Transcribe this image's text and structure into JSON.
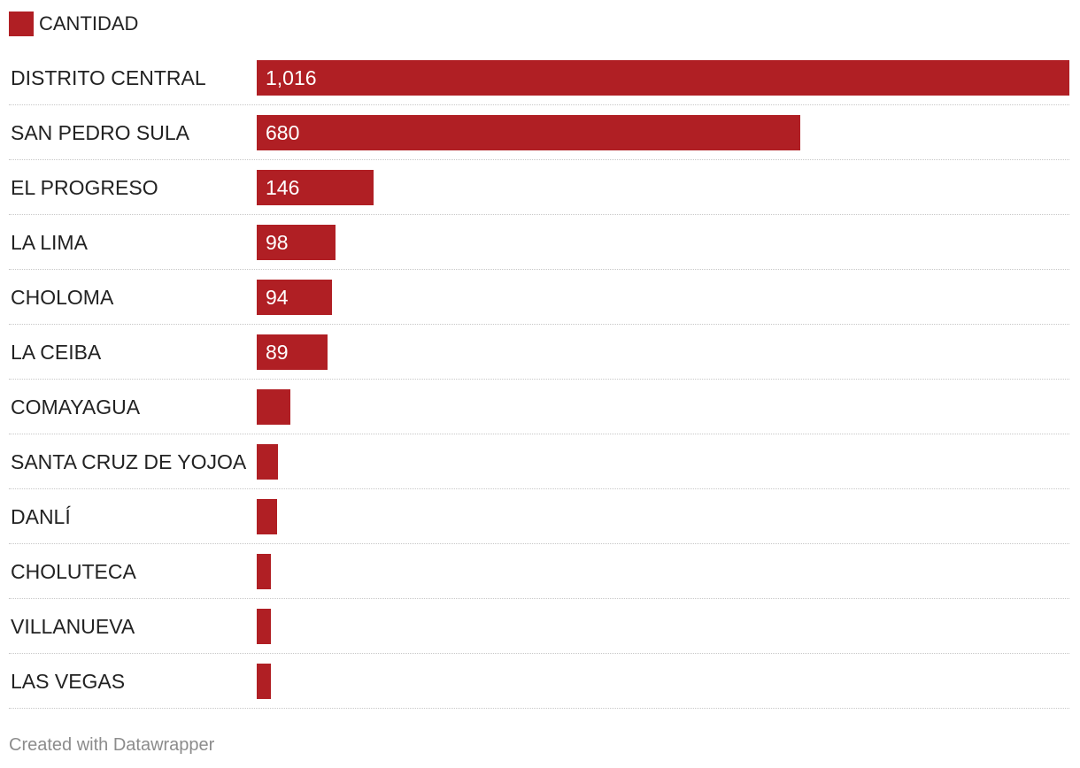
{
  "chart_data": {
    "type": "bar",
    "orientation": "horizontal",
    "categories": [
      "DISTRITO CENTRAL",
      "SAN PEDRO SULA",
      "EL PROGRESO",
      "LA LIMA",
      "CHOLOMA",
      "LA CEIBA",
      "COMAYAGUA",
      "SANTA CRUZ DE YOJOA",
      "DANLÍ",
      "CHOLUTECA",
      "VILLANUEVA",
      "LAS VEGAS"
    ],
    "series": [
      {
        "name": "CANTIDAD",
        "color": "#b01f24",
        "values": [
          1016,
          680,
          146,
          98,
          94,
          89,
          42,
          27,
          25,
          18,
          18,
          18
        ],
        "labels": [
          "1,016",
          "680",
          "146",
          "98",
          "94",
          "89",
          "",
          "",
          "",
          "",
          "",
          ""
        ]
      }
    ],
    "xlim": [
      0,
      1016
    ],
    "legend": "top-left",
    "grid": false
  },
  "legend": {
    "label": "CANTIDAD",
    "color": "#b01f24"
  },
  "footer": {
    "credit": "Created with Datawrapper"
  }
}
